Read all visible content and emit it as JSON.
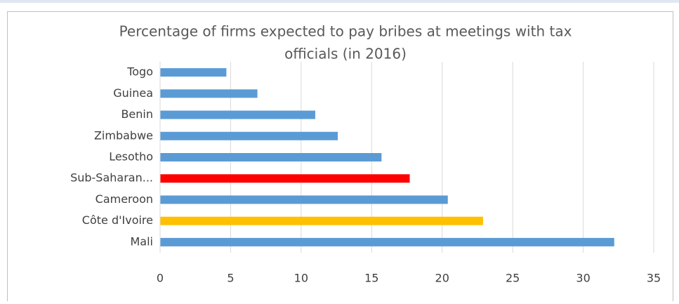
{
  "chart_data": {
    "type": "bar",
    "orientation": "horizontal",
    "title": [
      "Percentage of firms expected to pay bribes at meetings with tax",
      "officials (in 2016)"
    ],
    "categories": [
      "Togo",
      "Guinea",
      "Benin",
      "Zimbabwe",
      "Lesotho",
      "Sub-Saharan...",
      "Cameroon",
      "Côte d'Ivoire",
      "Mali"
    ],
    "values": [
      4.7,
      6.9,
      11.0,
      12.6,
      15.7,
      17.7,
      20.4,
      22.9,
      32.2
    ],
    "colors": [
      "#5b9bd5",
      "#5b9bd5",
      "#5b9bd5",
      "#5b9bd5",
      "#5b9bd5",
      "#ff0000",
      "#5b9bd5",
      "#ffc000",
      "#5b9bd5"
    ],
    "xlim": [
      0,
      35
    ],
    "xticks": [
      0,
      5,
      10,
      15,
      20,
      25,
      30,
      35
    ],
    "grid": true
  }
}
